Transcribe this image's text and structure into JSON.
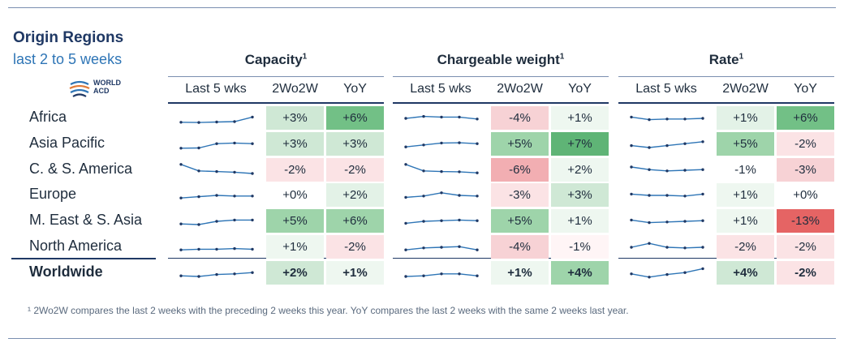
{
  "header": {
    "title": "Origin Regions",
    "subtitle": "last 2 to 5 weeks",
    "logo_line1": "WORLD",
    "logo_line2": "ACD"
  },
  "groups": [
    {
      "title": "Capacity",
      "sup": "1",
      "cols": [
        "Last 5 wks",
        "2Wo2W",
        "YoY"
      ]
    },
    {
      "title": "Chargeable weight",
      "sup": "1",
      "cols": [
        "Last 5 wks",
        "2Wo2W",
        "YoY"
      ]
    },
    {
      "title": "Rate",
      "sup": "1",
      "cols": [
        "Last 5 wks",
        "2Wo2W",
        "YoY"
      ]
    }
  ],
  "rows": [
    {
      "region": "Africa",
      "values": [
        [
          "+3%",
          "+6%"
        ],
        [
          "-4%",
          "+1%"
        ],
        [
          "+1%",
          "+6%"
        ]
      ],
      "colors": [
        [
          "#cfe8d5",
          "#72c086"
        ],
        [
          "#f7d2d5",
          "#eef7f0"
        ],
        [
          "#e3f2e7",
          "#72c086"
        ]
      ],
      "sparks": [
        [
          0.2,
          0.18,
          0.22,
          0.25,
          0.6
        ],
        [
          0.5,
          0.65,
          0.6,
          0.6,
          0.45
        ],
        [
          0.6,
          0.4,
          0.45,
          0.45,
          0.5
        ]
      ]
    },
    {
      "region": "Asia Pacific",
      "values": [
        [
          "+3%",
          "+3%"
        ],
        [
          "+5%",
          "+7%"
        ],
        [
          "+5%",
          "-2%"
        ]
      ],
      "colors": [
        [
          "#cfe8d5",
          "#cfe8d5"
        ],
        [
          "#9ed4aa",
          "#5fb476"
        ],
        [
          "#9ed4aa",
          "#fbe3e5"
        ]
      ],
      "sparks": [
        [
          0.2,
          0.22,
          0.55,
          0.6,
          0.55
        ],
        [
          0.3,
          0.45,
          0.6,
          0.62,
          0.55
        ],
        [
          0.4,
          0.25,
          0.4,
          0.55,
          0.7
        ]
      ]
    },
    {
      "region": "C. & S. America",
      "values": [
        [
          "-2%",
          "-2%"
        ],
        [
          "-6%",
          "+2%"
        ],
        [
          "-1%",
          "-3%"
        ]
      ],
      "colors": [
        [
          "#fbe3e5",
          "#fbe3e5"
        ],
        [
          "#f2aeb2",
          "#eef7f0"
        ],
        [
          "#ffffff",
          "#f7d2d5"
        ]
      ],
      "sparks": [
        [
          0.95,
          0.45,
          0.4,
          0.35,
          0.25
        ],
        [
          0.95,
          0.45,
          0.4,
          0.38,
          0.3
        ],
        [
          0.75,
          0.55,
          0.45,
          0.5,
          0.55
        ]
      ]
    },
    {
      "region": "Europe",
      "values": [
        [
          "+0%",
          "+2%"
        ],
        [
          "-3%",
          "+3%"
        ],
        [
          "+1%",
          "+0%"
        ]
      ],
      "colors": [
        [
          "#ffffff",
          "#e3f2e7"
        ],
        [
          "#fbe3e5",
          "#cfe8d5"
        ],
        [
          "#eef7f0",
          "#ffffff"
        ]
      ],
      "sparks": [
        [
          0.3,
          0.4,
          0.5,
          0.45,
          0.45
        ],
        [
          0.35,
          0.45,
          0.7,
          0.5,
          0.45
        ],
        [
          0.6,
          0.5,
          0.5,
          0.45,
          0.6
        ]
      ]
    },
    {
      "region": "M. East & S. Asia",
      "values": [
        [
          "+5%",
          "+6%"
        ],
        [
          "+5%",
          "+1%"
        ],
        [
          "+1%",
          "-13%"
        ]
      ],
      "colors": [
        [
          "#9ed4aa",
          "#9ed4aa"
        ],
        [
          "#9ed4aa",
          "#eef7f0"
        ],
        [
          "#eef7f0",
          "#e56464"
        ]
      ],
      "sparks": [
        [
          0.3,
          0.25,
          0.5,
          0.6,
          0.6
        ],
        [
          0.35,
          0.5,
          0.55,
          0.6,
          0.55
        ],
        [
          0.6,
          0.4,
          0.45,
          0.5,
          0.55
        ]
      ]
    },
    {
      "region": "North America",
      "values": [
        [
          "+1%",
          "-2%"
        ],
        [
          "-4%",
          "-1%"
        ],
        [
          "-2%",
          "-2%"
        ]
      ],
      "colors": [
        [
          "#eef7f0",
          "#fbe3e5"
        ],
        [
          "#f7d2d5",
          "#fff5f6"
        ],
        [
          "#fbe3e5",
          "#fbe3e5"
        ]
      ],
      "sparks": [
        [
          0.3,
          0.35,
          0.35,
          0.4,
          0.35
        ],
        [
          0.3,
          0.45,
          0.5,
          0.55,
          0.3
        ],
        [
          0.5,
          0.8,
          0.5,
          0.45,
          0.5
        ]
      ]
    },
    {
      "region": "Worldwide",
      "bold": true,
      "values": [
        [
          "+2%",
          "+1%"
        ],
        [
          "+1%",
          "+4%"
        ],
        [
          "+4%",
          "-2%"
        ]
      ],
      "colors": [
        [
          "#cfe8d5",
          "#eef7f0"
        ],
        [
          "#eef7f0",
          "#9ed4aa"
        ],
        [
          "#cfe8d5",
          "#fbe3e5"
        ]
      ],
      "sparks": [
        [
          0.3,
          0.25,
          0.4,
          0.45,
          0.55
        ],
        [
          0.25,
          0.3,
          0.45,
          0.45,
          0.3
        ],
        [
          0.45,
          0.2,
          0.4,
          0.55,
          0.85
        ]
      ]
    }
  ],
  "footnote": "¹ 2Wo2W compares the last 2 weeks with the preceding 2 weeks this year. YoY compares the last 2 weeks with the same 2 weeks last year.",
  "spark_color": "#2e75b6"
}
